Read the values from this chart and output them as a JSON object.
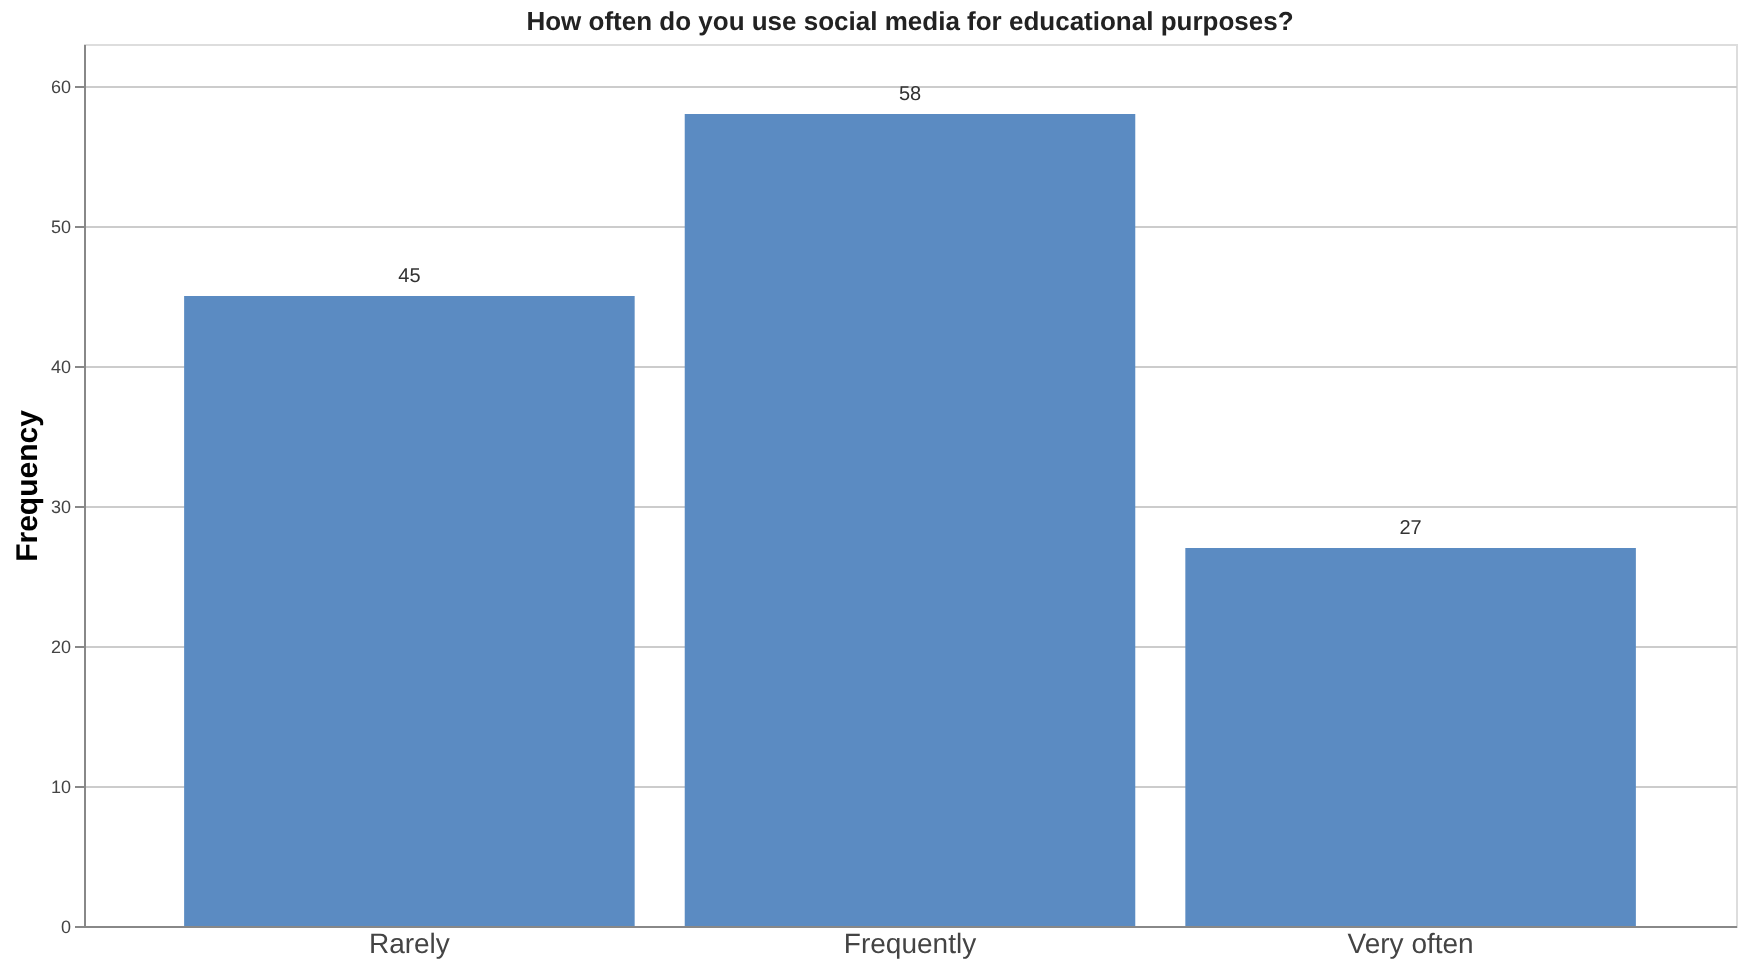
{
  "chart_data": {
    "type": "bar",
    "title": "How often do you use social media for educational purposes?",
    "ylabel": "Frequency",
    "categories": [
      "Rarely",
      "Frequently",
      "Very often"
    ],
    "values": [
      45,
      58,
      27
    ],
    "color": "#5b8bc2",
    "ylim": [
      0,
      63
    ],
    "yticks": [
      0,
      10,
      20,
      30,
      40,
      50,
      60
    ],
    "grid": "y",
    "data_labels": true
  }
}
